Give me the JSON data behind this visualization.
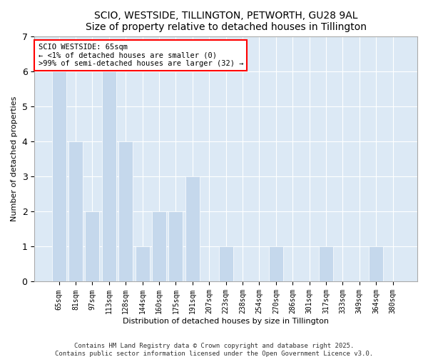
{
  "title1": "SCIO, WESTSIDE, TILLINGTON, PETWORTH, GU28 9AL",
  "title2": "Size of property relative to detached houses in Tillington",
  "xlabel": "Distribution of detached houses by size in Tillington",
  "ylabel": "Number of detached properties",
  "categories": [
    "65sqm",
    "81sqm",
    "97sqm",
    "113sqm",
    "128sqm",
    "144sqm",
    "160sqm",
    "175sqm",
    "191sqm",
    "207sqm",
    "223sqm",
    "238sqm",
    "254sqm",
    "270sqm",
    "286sqm",
    "301sqm",
    "317sqm",
    "333sqm",
    "349sqm",
    "364sqm",
    "380sqm"
  ],
  "values": [
    6,
    4,
    2,
    6,
    4,
    1,
    2,
    2,
    3,
    0,
    1,
    0,
    0,
    1,
    0,
    0,
    1,
    0,
    0,
    1,
    0
  ],
  "bar_color": "#c5d8ec",
  "background_color": "#dce9f5",
  "annotation_text": "SCIO WESTSIDE: 65sqm\n← <1% of detached houses are smaller (0)\n>99% of semi-detached houses are larger (32) →",
  "footer": "Contains HM Land Registry data © Crown copyright and database right 2025.\nContains public sector information licensed under the Open Government Licence v3.0.",
  "ylim": [
    0,
    7
  ],
  "yticks": [
    0,
    1,
    2,
    3,
    4,
    5,
    6,
    7
  ],
  "title_fontsize": 10,
  "tick_fontsize": 7,
  "ylabel_fontsize": 8,
  "xlabel_fontsize": 8
}
